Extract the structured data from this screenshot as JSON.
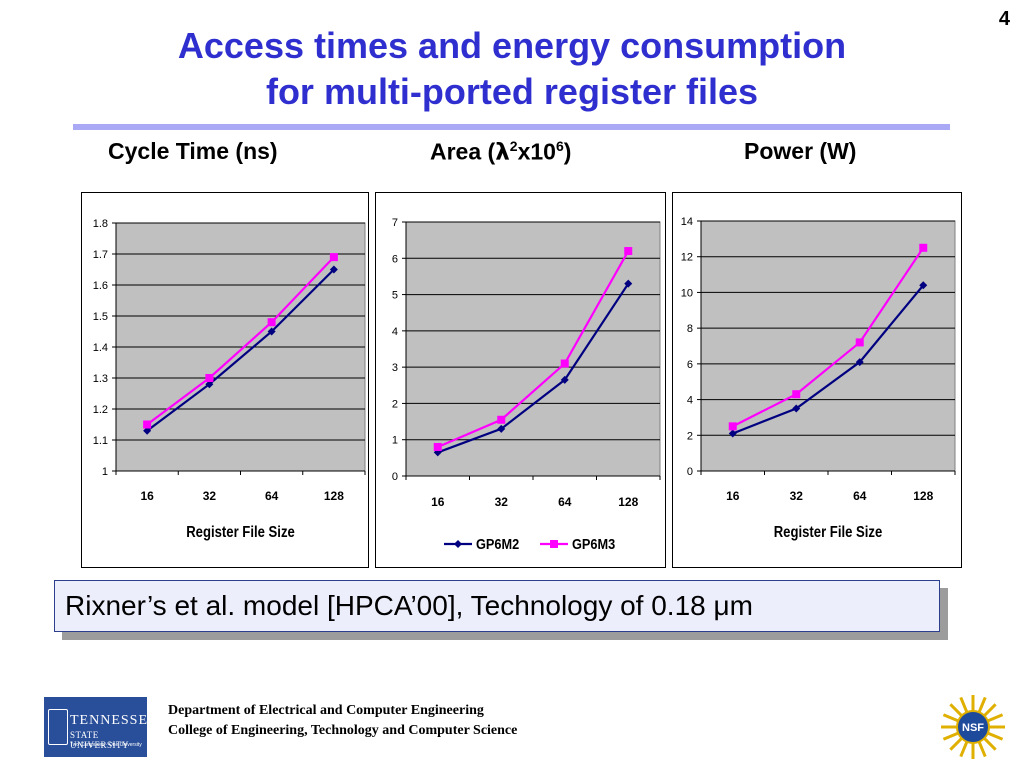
{
  "slide_number": "4",
  "title_line1": "Access times and energy consumption",
  "title_line2": "for multi-ported register files",
  "headings": {
    "cycle_time": "Cycle Time (ns)",
    "area_prefix": "Area (",
    "area_lambda": "λ",
    "area_sup1": "2",
    "area_mid": "x10",
    "area_sup2": "6",
    "area_suffix": ")",
    "power": "Power (W)"
  },
  "note": "Rixner’s et al. model [HPCA’00], Technology of 0.18 μm",
  "footer": {
    "line1": "Department of Electrical and Computer Engineering",
    "line2": "College of Engineering, Technology and Computer Science"
  },
  "logos": {
    "tsu_line1": "TENNESSEE",
    "tsu_line2": "STATE UNIVERSITY",
    "tsu_line3": "Two Campuses · One University",
    "nsf": "NSF"
  },
  "colors": {
    "title": "#2f2fcf",
    "gp6m2": "#000080",
    "gp6m3": "#ff00ff",
    "plot_bg": "#c0c0c0"
  },
  "chart_data": [
    {
      "type": "line",
      "categories": [
        "16",
        "32",
        "64",
        "128"
      ],
      "series": [
        {
          "name": "GP6M2",
          "values": [
            1.13,
            1.28,
            1.45,
            1.65
          ]
        },
        {
          "name": "GP6M3",
          "values": [
            1.15,
            1.3,
            1.48,
            1.69
          ]
        }
      ],
      "title": "Cycle Time (ns)",
      "xlabel": "Register File Size",
      "ylabel": "",
      "ylim": [
        1,
        1.8
      ],
      "yticks": [
        "1",
        "1.1",
        "1.2",
        "1.3",
        "1.4",
        "1.5",
        "1.6",
        "1.7",
        "1.8"
      ],
      "grid": true,
      "legend": "none"
    },
    {
      "type": "line",
      "categories": [
        "16",
        "32",
        "64",
        "128"
      ],
      "series": [
        {
          "name": "GP6M2",
          "values": [
            0.65,
            1.3,
            2.65,
            5.3
          ]
        },
        {
          "name": "GP6M3",
          "values": [
            0.8,
            1.55,
            3.1,
            6.2
          ]
        }
      ],
      "title": "Area (λ2x106)",
      "xlabel": "",
      "ylabel": "",
      "ylim": [
        0,
        7
      ],
      "yticks": [
        "0",
        "1",
        "2",
        "3",
        "4",
        "5",
        "6",
        "7"
      ],
      "grid": true,
      "legend": "bottom"
    },
    {
      "type": "line",
      "categories": [
        "16",
        "32",
        "64",
        "128"
      ],
      "series": [
        {
          "name": "GP6M2",
          "values": [
            2.1,
            3.5,
            6.1,
            10.4
          ]
        },
        {
          "name": "GP6M3",
          "values": [
            2.5,
            4.3,
            7.2,
            12.5
          ]
        }
      ],
      "title": "Power (W)",
      "xlabel": "Register File Size",
      "ylabel": "",
      "ylim": [
        0,
        14
      ],
      "yticks": [
        "0",
        "2",
        "4",
        "6",
        "8",
        "10",
        "12",
        "14"
      ],
      "grid": true,
      "legend": "none"
    }
  ]
}
